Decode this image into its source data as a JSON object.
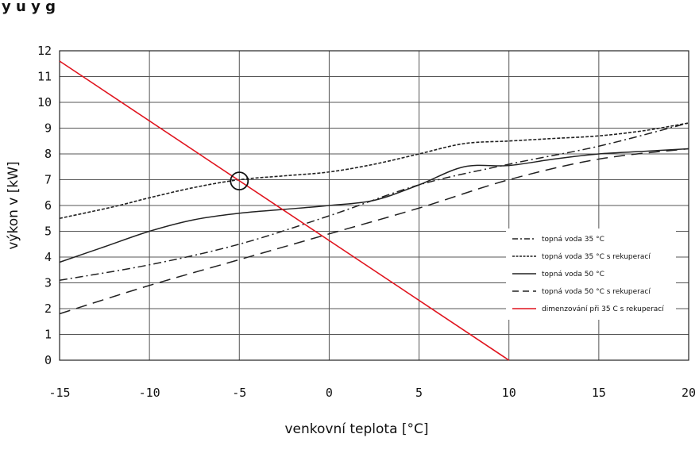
{
  "header_fragment": "y u y g",
  "chart_data": {
    "type": "line",
    "xlabel": "venkovní teplota [°C]",
    "ylabel": "výkon v  [kW]",
    "xlim": [
      -15,
      20
    ],
    "ylim": [
      0,
      12
    ],
    "x_ticks": [
      "-15",
      "-10",
      "-5",
      "0",
      "5",
      "10",
      "15",
      "20"
    ],
    "y_ticks": [
      "0",
      "1",
      "2",
      "3",
      "4",
      "5",
      "6",
      "7",
      "8",
      "9",
      "10",
      "11",
      "12"
    ],
    "grid": true,
    "legend_position": "right",
    "series": [
      {
        "name": "topná voda 35 °C",
        "style": "dashdot",
        "color": "#222222",
        "points": [
          [
            -15,
            3.1
          ],
          [
            -10,
            3.7
          ],
          [
            -5,
            4.5
          ],
          [
            0,
            5.6
          ],
          [
            5,
            6.8
          ],
          [
            10,
            7.6
          ],
          [
            15,
            8.3
          ],
          [
            20,
            9.2
          ]
        ]
      },
      {
        "name": "topná voda 35 °C s rekuperací",
        "style": "dotted",
        "color": "#222222",
        "points": [
          [
            -15,
            5.5
          ],
          [
            -12,
            5.95
          ],
          [
            -10,
            6.3
          ],
          [
            -7.5,
            6.7
          ],
          [
            -5,
            7.0
          ],
          [
            -2.5,
            7.15
          ],
          [
            0,
            7.3
          ],
          [
            2.5,
            7.6
          ],
          [
            5,
            8.0
          ],
          [
            7.5,
            8.4
          ],
          [
            10,
            8.5
          ],
          [
            12.5,
            8.6
          ],
          [
            15,
            8.7
          ],
          [
            17.5,
            8.9
          ],
          [
            20,
            9.2
          ]
        ]
      },
      {
        "name": "topná voda 50 °C",
        "style": "solid",
        "color": "#222222",
        "points": [
          [
            -15,
            3.8
          ],
          [
            -12.5,
            4.4
          ],
          [
            -10,
            5.0
          ],
          [
            -7.5,
            5.45
          ],
          [
            -5,
            5.7
          ],
          [
            -2.5,
            5.85
          ],
          [
            0,
            6.0
          ],
          [
            2.5,
            6.2
          ],
          [
            5,
            6.8
          ],
          [
            7.5,
            7.5
          ],
          [
            10,
            7.55
          ],
          [
            12.5,
            7.8
          ],
          [
            15,
            8.0
          ],
          [
            17.5,
            8.1
          ],
          [
            20,
            8.2
          ]
        ]
      },
      {
        "name": "topná voda 50 °C s rekuperací",
        "style": "dashed",
        "color": "#222222",
        "points": [
          [
            -15,
            1.8
          ],
          [
            -10,
            2.9
          ],
          [
            -5,
            3.9
          ],
          [
            0,
            4.9
          ],
          [
            5,
            5.9
          ],
          [
            10,
            7.0
          ],
          [
            15,
            7.8
          ],
          [
            20,
            8.2
          ]
        ]
      },
      {
        "name": "dimenzování při 35 C s rekuperací",
        "style": "solid",
        "color": "#e0141e",
        "points": [
          [
            -15,
            11.6
          ],
          [
            10,
            0
          ]
        ]
      }
    ],
    "annotations": [
      {
        "type": "circle",
        "x": -5,
        "y": 6.95
      }
    ]
  }
}
